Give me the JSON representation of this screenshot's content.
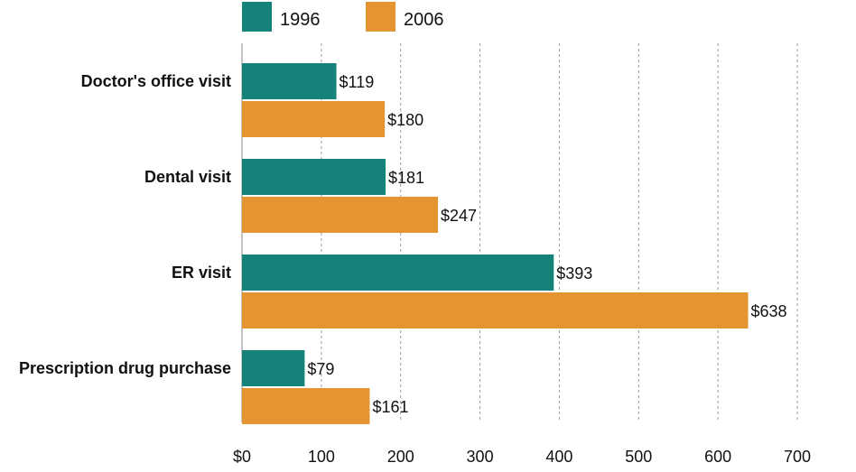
{
  "chart_data": {
    "type": "bar",
    "orientation": "horizontal",
    "categories": [
      "Doctor's office visit",
      "Dental visit",
      "ER visit",
      "Prescription drug purchase"
    ],
    "series": [
      {
        "name": "1996",
        "values": [
          119,
          181,
          393,
          79
        ],
        "color": "#16837a"
      },
      {
        "name": "2006",
        "values": [
          180,
          247,
          638,
          161
        ],
        "color": "#e59432"
      }
    ],
    "value_labels": [
      [
        "$119",
        "$181",
        "$393",
        "$79"
      ],
      [
        "$180",
        "$247",
        "$638",
        "$161"
      ]
    ],
    "xlim": [
      0,
      700
    ],
    "x_ticks": [
      0,
      100,
      200,
      300,
      400,
      500,
      600,
      700
    ],
    "x_tick_labels": [
      "$0",
      "100",
      "200",
      "300",
      "400",
      "500",
      "600",
      "700"
    ],
    "grid": "vertical-dashed",
    "legend_position": "top-left",
    "title": "",
    "xlabel": "",
    "ylabel": ""
  }
}
